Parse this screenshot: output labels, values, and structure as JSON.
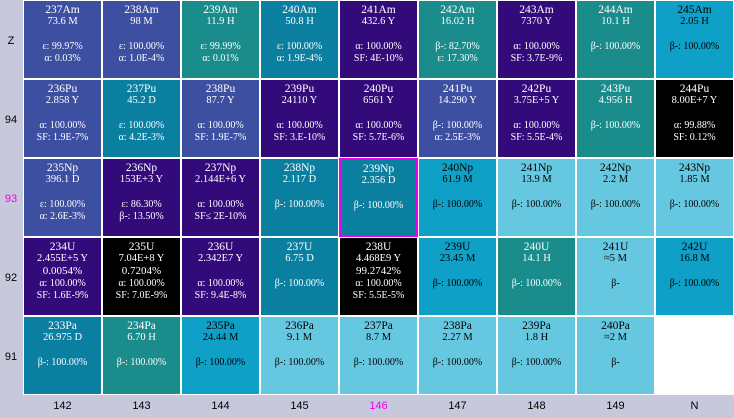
{
  "row_labels": [
    "Z",
    "94",
    "93",
    "92",
    "91"
  ],
  "highlight_row": "93",
  "col_labels": [
    "142",
    "143",
    "144",
    "145",
    "146",
    "147",
    "148",
    "149",
    "N"
  ],
  "highlight_col": "146",
  "colors": {
    "dark_blue": "#3d4fa0",
    "indigo": "#330a7a",
    "teal": "#1a8c8c",
    "mid_blue": "#0b7fa0",
    "cyan": "#0fa0c8",
    "light_cyan": "#66c8e0",
    "black": "#000000",
    "highlight": "#ee00ee"
  },
  "rows": [
    [
      {
        "name": "237Am",
        "lines": [
          "73.6 M",
          "",
          "ε: 99.97%",
          "α: 0.03%"
        ],
        "color": "dark_blue"
      },
      {
        "name": "238Am",
        "lines": [
          "98 M",
          "",
          "ε: 100.00%",
          "α: 1.0E-4%"
        ],
        "color": "dark_blue"
      },
      {
        "name": "239Am",
        "lines": [
          "11.9 H",
          "",
          "ε: 99.99%",
          "α: 0.01%"
        ],
        "color": "teal"
      },
      {
        "name": "240Am",
        "lines": [
          "50.8 H",
          "",
          "ε: 100.00%",
          "α: 1.9E-4%"
        ],
        "color": "mid_blue"
      },
      {
        "name": "241Am",
        "lines": [
          "432.6 Y",
          "",
          "α: 100.00%",
          "SF: 4E-10%"
        ],
        "color": "indigo"
      },
      {
        "name": "242Am",
        "lines": [
          "16.02 H",
          "",
          "β-: 82.70%",
          "ε: 17.30%"
        ],
        "color": "teal"
      },
      {
        "name": "243Am",
        "lines": [
          "7370 Y",
          "",
          "α: 100.00%",
          "SF: 3.7E-9%"
        ],
        "color": "indigo"
      },
      {
        "name": "244Am",
        "lines": [
          "10.1 H",
          "",
          "β-: 100.00%",
          ""
        ],
        "color": "teal"
      },
      {
        "name": "245Am",
        "lines": [
          "2.05 H",
          "",
          "β-: 100.00%",
          ""
        ],
        "color": "cyan"
      }
    ],
    [
      {
        "name": "236Pu",
        "lines": [
          "2.858 Y",
          "",
          "α: 100.00%",
          "SF: 1.9E-7%"
        ],
        "color": "dark_blue"
      },
      {
        "name": "237Pu",
        "lines": [
          "45.2 D",
          "",
          "ε: 100.00%",
          "α: 4.2E-3%"
        ],
        "color": "mid_blue"
      },
      {
        "name": "238Pu",
        "lines": [
          "87.7 Y",
          "",
          "α: 100.00%",
          "SF: 1.9E-7%"
        ],
        "color": "dark_blue"
      },
      {
        "name": "239Pu",
        "lines": [
          "24110 Y",
          "",
          "α: 100.00%",
          "SF: 3.E-10%"
        ],
        "color": "indigo"
      },
      {
        "name": "240Pu",
        "lines": [
          "6561 Y",
          "",
          "α: 100.00%",
          "SF: 5.7E-6%"
        ],
        "color": "indigo"
      },
      {
        "name": "241Pu",
        "lines": [
          "14.290 Y",
          "",
          "β-: 100.00%",
          "α: 2.5E-3%"
        ],
        "color": "dark_blue"
      },
      {
        "name": "242Pu",
        "lines": [
          "3.75E+5 Y",
          "",
          "α: 100.00%",
          "SF: 5.5E-4%"
        ],
        "color": "indigo"
      },
      {
        "name": "243Pu",
        "lines": [
          "4.956 H",
          "",
          "β-: 100.00%",
          ""
        ],
        "color": "teal"
      },
      {
        "name": "244Pu",
        "lines": [
          "8.00E+7 Y",
          "",
          "α: 99.88%",
          "SF: 0.12%"
        ],
        "color": "black"
      }
    ],
    [
      {
        "name": "235Np",
        "lines": [
          "396.1 D",
          "",
          "ε: 100.00%",
          "α: 2.6E-3%"
        ],
        "color": "dark_blue"
      },
      {
        "name": "236Np",
        "lines": [
          "153E+3 Y",
          "",
          "ε: 86.30%",
          "β-: 13.50%"
        ],
        "color": "indigo"
      },
      {
        "name": "237Np",
        "lines": [
          "2.144E+6 Y",
          "",
          "α: 100.00%",
          "SF≤ 2E-10%"
        ],
        "color": "indigo"
      },
      {
        "name": "238Np",
        "lines": [
          "2.117 D",
          "",
          "β-: 100.00%",
          ""
        ],
        "color": "mid_blue"
      },
      {
        "name": "239Np",
        "lines": [
          "2.356 D",
          "",
          "β-: 100.00%",
          ""
        ],
        "color": "mid_blue",
        "highlight": true
      },
      {
        "name": "240Np",
        "lines": [
          "61.9 M",
          "",
          "β-: 100.00%",
          ""
        ],
        "color": "cyan"
      },
      {
        "name": "241Np",
        "lines": [
          "13.9 M",
          "",
          "β-: 100.00%",
          ""
        ],
        "color": "light_cyan"
      },
      {
        "name": "242Np",
        "lines": [
          "2.2 M",
          "",
          "β-: 100.00%",
          ""
        ],
        "color": "light_cyan"
      },
      {
        "name": "243Np",
        "lines": [
          "1.85 M",
          "",
          "β-: 100.00%",
          ""
        ],
        "color": "light_cyan"
      }
    ],
    [
      {
        "name": "234U",
        "lines": [
          "2.455E+5 Y",
          "0.0054%",
          "α: 100.00%",
          "SF: 1.6E-9%"
        ],
        "color": "indigo",
        "four": true
      },
      {
        "name": "235U",
        "lines": [
          "7.04E+8 Y",
          "0.7204%",
          "α: 100.00%",
          "SF: 7.0E-9%"
        ],
        "color": "black",
        "four": true
      },
      {
        "name": "236U",
        "lines": [
          "2.342E7 Y",
          "",
          "α: 100.00%",
          "SF: 9.4E-8%"
        ],
        "color": "indigo"
      },
      {
        "name": "237U",
        "lines": [
          "6.75 D",
          "",
          "β-: 100.00%",
          ""
        ],
        "color": "mid_blue"
      },
      {
        "name": "238U",
        "lines": [
          "4.468E9 Y",
          "99.2742%",
          "α: 100.00%",
          "SF: 5.5E-5%"
        ],
        "color": "black",
        "four": true
      },
      {
        "name": "239U",
        "lines": [
          "23.45 M",
          "",
          "β-: 100.00%",
          ""
        ],
        "color": "cyan"
      },
      {
        "name": "240U",
        "lines": [
          "14.1 H",
          "",
          "β-: 100.00%",
          ""
        ],
        "color": "teal"
      },
      {
        "name": "241U",
        "lines": [
          "≈5 M",
          "",
          "β-",
          ""
        ],
        "color": "light_cyan"
      },
      {
        "name": "242U",
        "lines": [
          "16.8 M",
          "",
          "β-: 100.00%",
          ""
        ],
        "color": "cyan"
      }
    ],
    [
      {
        "name": "233Pa",
        "lines": [
          "26.975 D",
          "",
          "β-: 100.00%",
          ""
        ],
        "color": "mid_blue"
      },
      {
        "name": "234Pa",
        "lines": [
          "6.70 H",
          "",
          "β-: 100.00%",
          ""
        ],
        "color": "teal"
      },
      {
        "name": "235Pa",
        "lines": [
          "24.44 M",
          "",
          "β-: 100.00%",
          ""
        ],
        "color": "cyan"
      },
      {
        "name": "236Pa",
        "lines": [
          "9.1 M",
          "",
          "β-: 100.00%",
          ""
        ],
        "color": "light_cyan"
      },
      {
        "name": "237Pa",
        "lines": [
          "8.7 M",
          "",
          "β-: 100.00%",
          ""
        ],
        "color": "light_cyan"
      },
      {
        "name": "238Pa",
        "lines": [
          "2.27 M",
          "",
          "β-: 100.00%",
          ""
        ],
        "color": "light_cyan"
      },
      {
        "name": "239Pa",
        "lines": [
          "1.8 H",
          "",
          "β-: 100.00%",
          ""
        ],
        "color": "light_cyan"
      },
      {
        "name": "240Pa",
        "lines": [
          "≈2 M",
          "",
          "β-",
          ""
        ],
        "color": "light_cyan"
      },
      null
    ]
  ]
}
